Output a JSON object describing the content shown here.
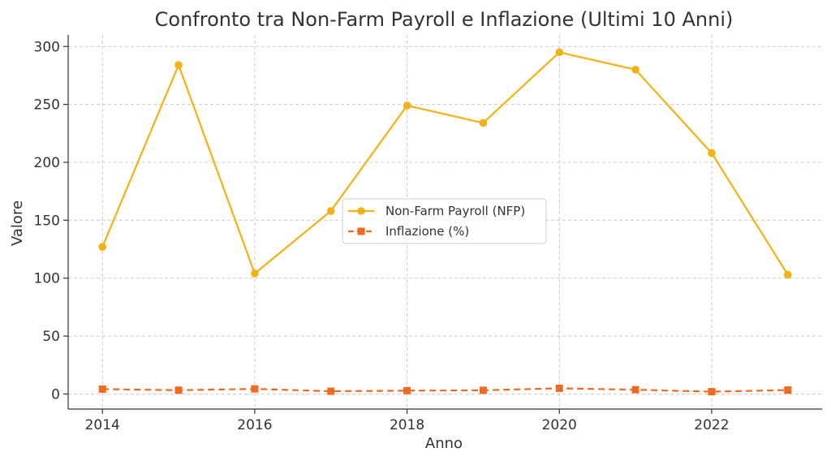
{
  "chart_data": {
    "type": "line",
    "title": "Confronto tra Non-Farm Payroll e Inflazione (Ultimi 10 Anni)",
    "xlabel": "Anno",
    "ylabel": "Valore",
    "x": [
      2014,
      2015,
      2016,
      2017,
      2018,
      2019,
      2020,
      2021,
      2022,
      2023
    ],
    "xticks": [
      2014,
      2016,
      2018,
      2020,
      2022
    ],
    "yticks": [
      0,
      50,
      100,
      150,
      200,
      250,
      300
    ],
    "xlim": [
      2013.55,
      2023.45
    ],
    "ylim": [
      -13,
      310
    ],
    "grid": true,
    "legend_position": "center",
    "series": [
      {
        "name": "Non-Farm Payroll (NFP)",
        "color": "#F5B013",
        "style": "solid",
        "marker": "circle",
        "values": [
          127,
          284,
          104,
          158,
          249,
          234,
          295,
          280,
          208,
          103
        ]
      },
      {
        "name": "Inflazione (%)",
        "color": "#F06A22",
        "style": "dashed",
        "marker": "square",
        "values": [
          4.2,
          3.3,
          4.4,
          2.4,
          2.9,
          3.2,
          4.9,
          3.7,
          2.0,
          3.4
        ]
      }
    ]
  }
}
